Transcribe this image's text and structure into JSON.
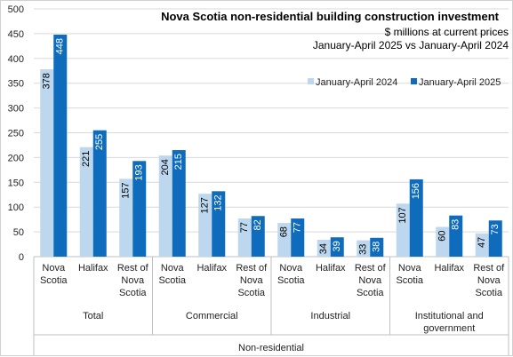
{
  "chart_data": {
    "type": "bar",
    "title": "Nova Scotia non-residential  building construction investment",
    "subtitle_lines": [
      "$ millions at current prices",
      "January-April 2025 vs January-April 2024"
    ],
    "ylim": [
      0,
      500
    ],
    "yticks": [
      "0",
      "50",
      "100",
      "150",
      "200",
      "250",
      "300",
      "350",
      "400",
      "450",
      "500"
    ],
    "grid": true,
    "legend_position": "top-right",
    "categories": [
      [
        "Nova",
        "Scotia"
      ],
      [
        "Halifax"
      ],
      [
        "Rest of",
        "Nova",
        "Scotia"
      ],
      [
        "Nova",
        "Scotia"
      ],
      [
        "Halifax"
      ],
      [
        "Rest of",
        "Nova",
        "Scotia"
      ],
      [
        "Nova",
        "Scotia"
      ],
      [
        "Halifax"
      ],
      [
        "Rest of",
        "Nova",
        "Scotia"
      ],
      [
        "Nova",
        "Scotia"
      ],
      [
        "Halifax"
      ],
      [
        "Rest of",
        "Nova",
        "Scotia"
      ]
    ],
    "groups": [
      {
        "label": [
          "Total"
        ],
        "span": 3
      },
      {
        "label": [
          "Commercial"
        ],
        "span": 3
      },
      {
        "label": [
          "Industrial"
        ],
        "span": 3
      },
      {
        "label": [
          "Institutional and",
          "government"
        ],
        "span": 3
      }
    ],
    "top_group_label": "Non-residential",
    "series": [
      {
        "name": "January-April 2024",
        "color": "#bdd7ee",
        "label_color": "#000000",
        "values": [
          378,
          221,
          157,
          204,
          127,
          77,
          68,
          34,
          33,
          107,
          60,
          47
        ]
      },
      {
        "name": "January-April 2025",
        "color": "#0f6cbd",
        "label_color": "#ffffff",
        "values": [
          448,
          255,
          193,
          215,
          132,
          82,
          77,
          39,
          38,
          156,
          83,
          73
        ]
      }
    ]
  }
}
